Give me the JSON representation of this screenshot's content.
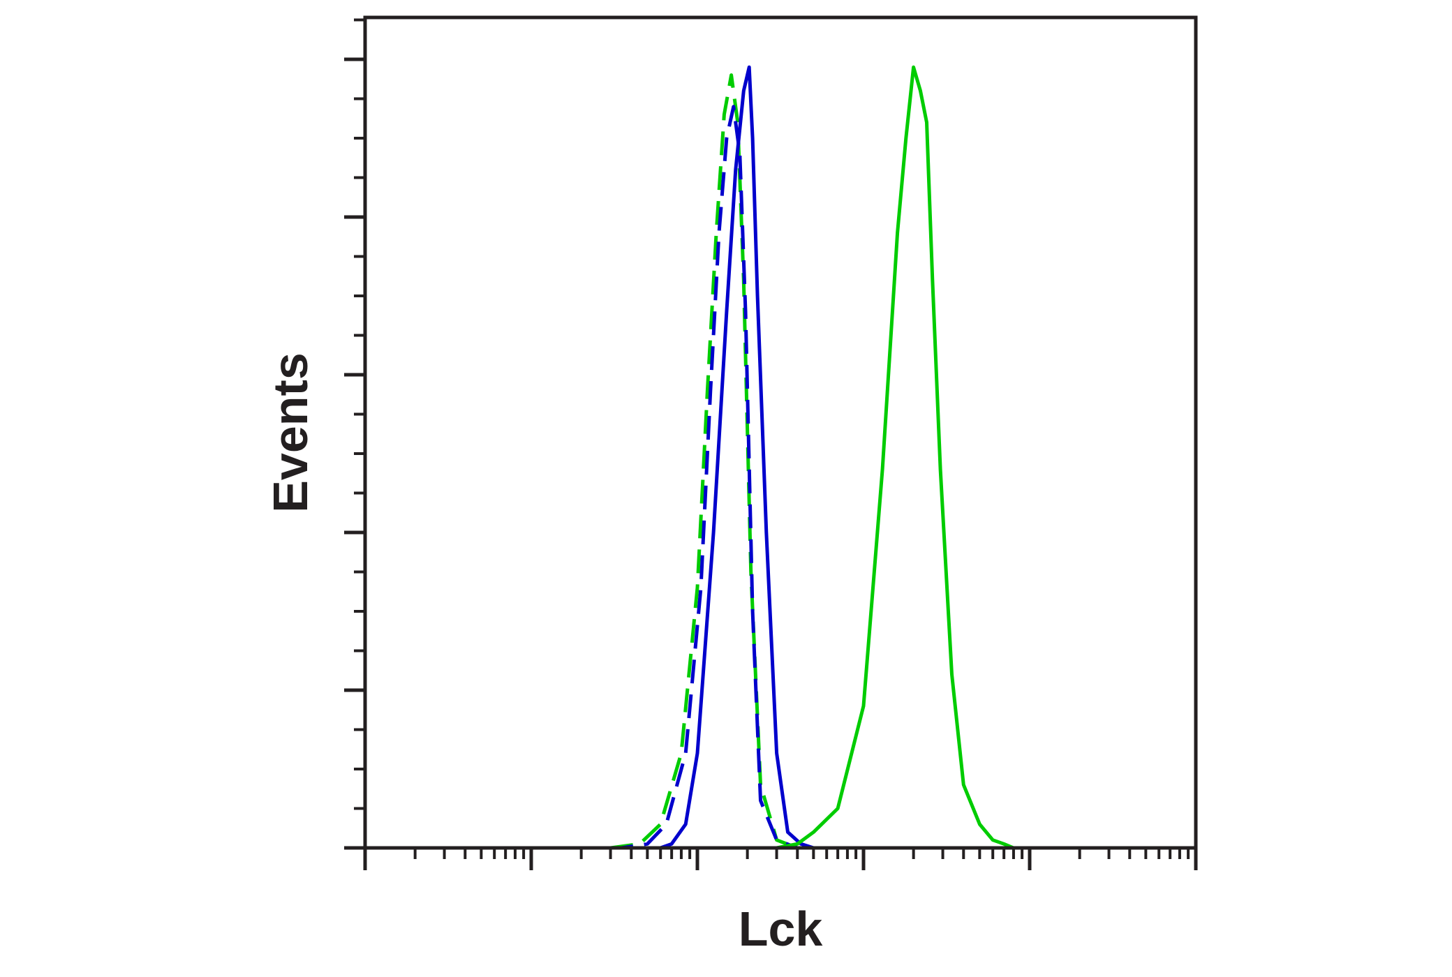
{
  "chart_data": {
    "type": "line",
    "chart_kind": "flow cytometry histogram",
    "xlabel": "Lck",
    "ylabel": "Events",
    "x_scale": "log",
    "xlim": [
      1,
      100000
    ],
    "ylim": [
      0,
      100
    ],
    "grid": false,
    "legend": "none",
    "tick_labels_shown": false,
    "series": [
      {
        "style": "dashed",
        "color": "#00cc00",
        "x": [
          1,
          30,
          45,
          60,
          80,
          100,
          115,
          130,
          145,
          160,
          175,
          190,
          210,
          240,
          300,
          400,
          2000,
          100000
        ],
        "y": [
          0,
          0,
          0.5,
          3,
          12,
          33,
          58,
          78,
          93,
          98,
          92,
          72,
          35,
          8,
          1,
          0,
          0,
          0
        ]
      },
      {
        "style": "dashed",
        "color": "#0000cc",
        "x": [
          1,
          35,
          50,
          65,
          85,
          105,
          120,
          135,
          150,
          165,
          180,
          195,
          215,
          240,
          300,
          400,
          2000,
          100000
        ],
        "y": [
          0,
          0,
          0.5,
          3,
          12,
          33,
          58,
          78,
          90,
          94,
          88,
          68,
          30,
          6,
          1,
          0,
          0,
          0
        ]
      },
      {
        "style": "solid",
        "color": "#0000cc",
        "x": [
          1,
          60,
          70,
          85,
          100,
          125,
          150,
          170,
          190,
          205,
          215,
          230,
          260,
          300,
          350,
          420,
          500,
          1000,
          100000
        ],
        "y": [
          0,
          0,
          0.5,
          3,
          12,
          40,
          68,
          86,
          96,
          99,
          90,
          70,
          40,
          12,
          2,
          0.5,
          0,
          0,
          0
        ]
      },
      {
        "style": "solid",
        "color": "#00cc00",
        "x": [
          1,
          300,
          400,
          500,
          700,
          1000,
          1300,
          1600,
          1800,
          2000,
          2200,
          2400,
          2600,
          2900,
          3400,
          4000,
          5000,
          6000,
          7000,
          8000,
          100000
        ],
        "y": [
          0,
          0,
          0.5,
          2,
          5,
          18,
          48,
          78,
          90,
          99,
          96,
          92,
          72,
          48,
          22,
          8,
          3,
          1,
          0.5,
          0,
          0
        ]
      }
    ]
  }
}
